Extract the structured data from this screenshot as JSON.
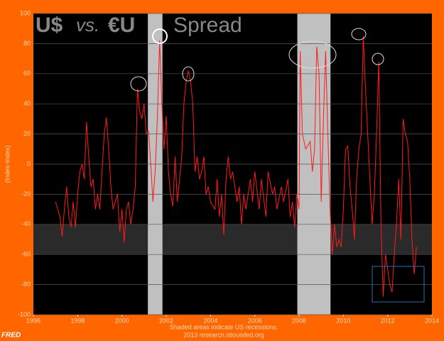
{
  "chart_data": {
    "type": "line",
    "title": {
      "part1": "U$",
      "part2": "vs.",
      "part3": "€U",
      "part4": "Spread"
    },
    "ylabel": "(Index-Index)",
    "note": "Shaded areas indicate US recessions.",
    "source": "2013 research.stlouisfed.org",
    "logo": "FRED",
    "color": "#ff1a1a",
    "recessions": [
      [
        2001.17,
        2001.83
      ],
      [
        2007.92,
        2009.42
      ]
    ],
    "band": [
      -60,
      -40
    ],
    "x": [
      1997.0,
      1997.1,
      1997.2,
      1997.3,
      1997.4,
      1997.5,
      1997.6,
      1997.7,
      1997.8,
      1997.9,
      1998.0,
      1998.1,
      1998.2,
      1998.3,
      1998.4,
      1998.5,
      1998.6,
      1998.7,
      1998.8,
      1998.9,
      1999.0,
      1999.1,
      1999.2,
      1999.3,
      1999.4,
      1999.5,
      1999.6,
      1999.7,
      1999.8,
      1999.9,
      2000.0,
      2000.1,
      2000.2,
      2000.3,
      2000.4,
      2000.5,
      2000.6,
      2000.7,
      2000.8,
      2000.9,
      2001.0,
      2001.1,
      2001.2,
      2001.3,
      2001.4,
      2001.5,
      2001.6,
      2001.7,
      2001.8,
      2001.9,
      2002.0,
      2002.1,
      2002.2,
      2002.3,
      2002.4,
      2002.5,
      2002.6,
      2002.7,
      2002.8,
      2002.9,
      2003.0,
      2003.1,
      2003.2,
      2003.3,
      2003.4,
      2003.5,
      2003.6,
      2003.7,
      2003.8,
      2003.9,
      2004.0,
      2004.2,
      2004.3,
      2004.4,
      2004.5,
      2004.6,
      2004.7,
      2004.8,
      2004.9,
      2005.0,
      2005.2,
      2005.3,
      2005.4,
      2005.5,
      2005.6,
      2005.8,
      2005.9,
      2006.0,
      2006.2,
      2006.3,
      2006.5,
      2006.6,
      2006.8,
      2006.9,
      2007.0,
      2007.2,
      2007.3,
      2007.5,
      2007.6,
      2007.7,
      2007.8,
      2007.9,
      2008.0,
      2008.05,
      2008.15,
      2008.3,
      2008.5,
      2008.6,
      2008.7,
      2008.8,
      2008.9,
      2009.0,
      2009.1,
      2009.2,
      2009.3,
      2009.4,
      2009.5,
      2009.6,
      2009.7,
      2009.8,
      2009.9,
      2010.0,
      2010.1,
      2010.2,
      2010.3,
      2010.4,
      2010.5,
      2010.6,
      2010.7,
      2010.8,
      2010.9,
      2011.0,
      2011.1,
      2011.2,
      2011.3,
      2011.4,
      2011.5,
      2011.6,
      2011.7,
      2011.8,
      2011.9,
      2012.0,
      2012.1,
      2012.2,
      2012.3,
      2012.4,
      2012.5,
      2012.6,
      2012.7,
      2012.8,
      2012.9,
      2013.0,
      2013.1,
      2013.2,
      2013.3
    ],
    "values": [
      -25,
      -30,
      -35,
      -48,
      -30,
      -15,
      -35,
      -42,
      -25,
      -42,
      -20,
      -5,
      0,
      -10,
      28,
      5,
      -15,
      -10,
      -30,
      -20,
      -30,
      -5,
      20,
      31,
      10,
      -15,
      -30,
      -25,
      -20,
      -45,
      -30,
      -52,
      -30,
      -25,
      -40,
      -30,
      -15,
      50,
      35,
      30,
      40,
      20,
      22,
      0,
      -25,
      -5,
      30,
      82,
      40,
      10,
      32,
      -5,
      -20,
      -28,
      5,
      -25,
      -10,
      5,
      40,
      55,
      62,
      55,
      40,
      -5,
      5,
      -10,
      -5,
      5,
      -20,
      -15,
      -25,
      -30,
      -10,
      -35,
      -20,
      -47,
      -10,
      5,
      -10,
      -5,
      -25,
      -15,
      -40,
      -20,
      -30,
      -10,
      -25,
      -5,
      -30,
      -10,
      -35,
      -5,
      -20,
      -15,
      -30,
      -15,
      -25,
      -10,
      -35,
      -25,
      -42,
      -20,
      -30,
      75,
      20,
      10,
      15,
      -5,
      10,
      78,
      60,
      -25,
      30,
      75,
      20,
      -30,
      -60,
      -40,
      -55,
      -50,
      -55,
      -30,
      10,
      12,
      -15,
      -30,
      -50,
      -10,
      10,
      20,
      85,
      50,
      20,
      -10,
      -40,
      -20,
      20,
      68,
      -40,
      -88,
      -60,
      -70,
      -80,
      -85,
      -60,
      -40,
      -10,
      -50,
      30,
      20,
      15,
      -10,
      -50,
      -73,
      -55
    ],
    "xlim": [
      1996,
      2014
    ],
    "xticks": [
      1996,
      1998,
      2000,
      2002,
      2004,
      2006,
      2008,
      2010,
      2012,
      2014
    ],
    "ylim": [
      -100,
      100
    ],
    "yticks": [
      -100,
      -80,
      -60,
      -40,
      -20,
      0,
      20,
      40,
      60,
      80,
      100
    ],
    "grid": true
  }
}
